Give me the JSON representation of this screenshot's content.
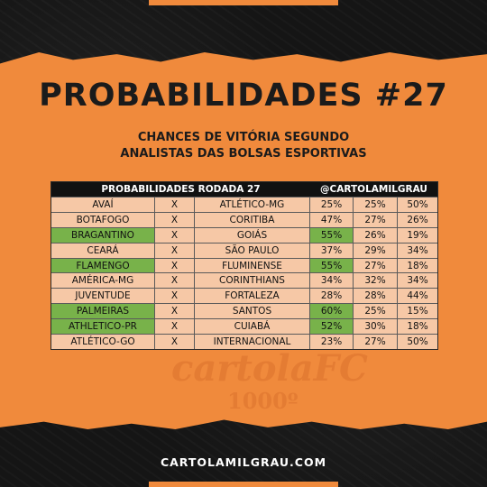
{
  "title": "PROBABILIDADES #27",
  "subtitle_line1": "CHANCES DE VITÓRIA SEGUNDO",
  "subtitle_line2": "ANALISTAS DAS BOLSAS ESPORTIVAS",
  "table": {
    "header_left": "PROBABILIDADES RODADA 27",
    "header_right": "@CARTOLAMILGRAU",
    "rows": [
      {
        "home": "AVAÍ",
        "x": "X",
        "away": "ATLÉTICO-MG",
        "p1": "25%",
        "p2": "25%",
        "p3": "50%",
        "highlight": ""
      },
      {
        "home": "BOTAFOGO",
        "x": "X",
        "away": "CORITIBA",
        "p1": "47%",
        "p2": "27%",
        "p3": "26%",
        "highlight": ""
      },
      {
        "home": "BRAGANTINO",
        "x": "X",
        "away": "GOIÁS",
        "p1": "55%",
        "p2": "26%",
        "p3": "19%",
        "highlight": "home"
      },
      {
        "home": "CEARÁ",
        "x": "X",
        "away": "SÃO PAULO",
        "p1": "37%",
        "p2": "29%",
        "p3": "34%",
        "highlight": ""
      },
      {
        "home": "FLAMENGO",
        "x": "X",
        "away": "FLUMINENSE",
        "p1": "55%",
        "p2": "27%",
        "p3": "18%",
        "highlight": "home"
      },
      {
        "home": "AMÉRICA-MG",
        "x": "X",
        "away": "CORINTHIANS",
        "p1": "34%",
        "p2": "32%",
        "p3": "34%",
        "highlight": ""
      },
      {
        "home": "JUVENTUDE",
        "x": "X",
        "away": "FORTALEZA",
        "p1": "28%",
        "p2": "28%",
        "p3": "44%",
        "highlight": ""
      },
      {
        "home": "PALMEIRAS",
        "x": "X",
        "away": "SANTOS",
        "p1": "60%",
        "p2": "25%",
        "p3": "15%",
        "highlight": "home"
      },
      {
        "home": "ATHLETICO-PR",
        "x": "X",
        "away": "CUIABÁ",
        "p1": "52%",
        "p2": "30%",
        "p3": "18%",
        "highlight": "home"
      },
      {
        "home": "ATLÉTICO-GO",
        "x": "X",
        "away": "INTERNACIONAL",
        "p1": "23%",
        "p2": "27%",
        "p3": "50%",
        "highlight": ""
      }
    ]
  },
  "watermark": {
    "logo": "cartolafc",
    "number": "1000º"
  },
  "footer": "CARTOLAMILGRAU.COM",
  "colors": {
    "accent": "#f08a3c",
    "highlight": "#78b24a",
    "cell": "#f6c8a6",
    "background": "#151515"
  }
}
